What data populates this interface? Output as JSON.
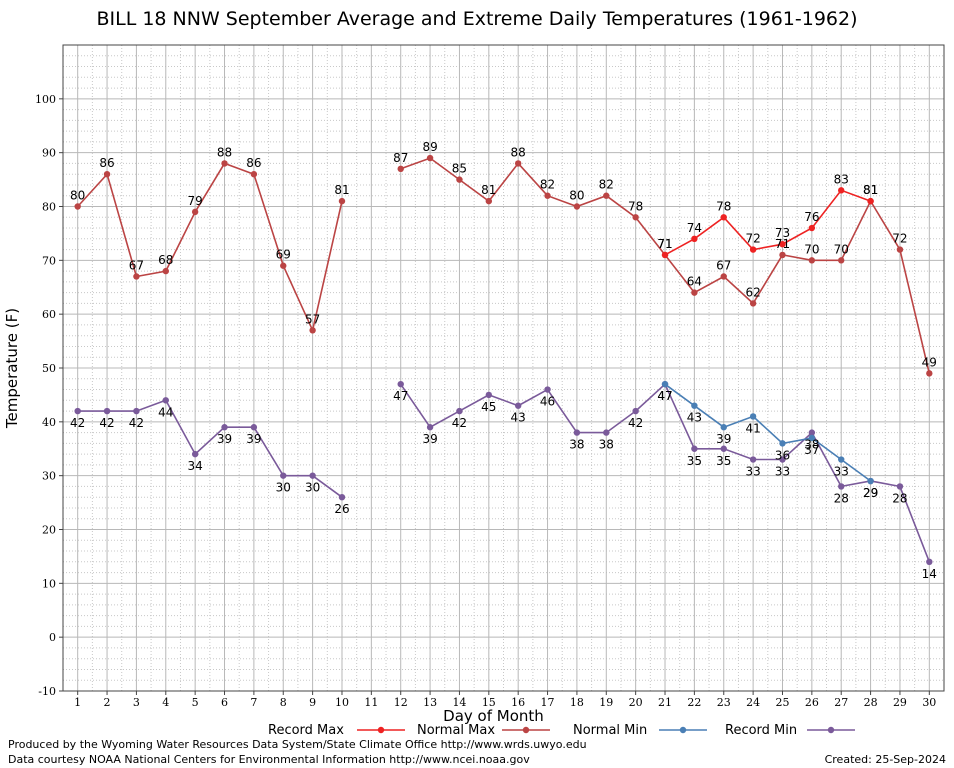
{
  "chart_data": {
    "type": "line",
    "title": "BILL 18 NNW September Average and Extreme Daily Temperatures (1961-1962)",
    "xlabel": "Day of Month",
    "ylabel": "Temperature (F)",
    "x": [
      1,
      2,
      3,
      4,
      5,
      6,
      7,
      8,
      9,
      10,
      11,
      12,
      13,
      14,
      15,
      16,
      17,
      18,
      19,
      20,
      21,
      22,
      23,
      24,
      25,
      26,
      27,
      28,
      29,
      30
    ],
    "xlim": [
      0.5,
      30.5
    ],
    "ylim": [
      -10,
      110
    ],
    "yticks": [
      -10,
      0,
      10,
      20,
      30,
      40,
      50,
      60,
      70,
      80,
      90,
      100
    ],
    "grid": true,
    "legend_position": "bottom",
    "series": [
      {
        "name": "Record Max",
        "color": "#ee2222",
        "show_labels": true,
        "values": [
          null,
          null,
          null,
          null,
          null,
          null,
          null,
          null,
          null,
          null,
          null,
          null,
          null,
          null,
          null,
          null,
          null,
          null,
          null,
          null,
          71,
          74,
          78,
          72,
          73,
          76,
          83,
          81,
          null,
          null
        ]
      },
      {
        "name": "Normal Max",
        "color": "#bb4444",
        "show_labels": true,
        "values": [
          80,
          86,
          67,
          68,
          79,
          88,
          86,
          69,
          57,
          81,
          null,
          87,
          89,
          85,
          81,
          88,
          82,
          80,
          82,
          78,
          71,
          64,
          67,
          62,
          71,
          70,
          70,
          81,
          72,
          49
        ]
      },
      {
        "name": "Normal Min",
        "color": "#4a7fb5",
        "show_labels": true,
        "values": [
          null,
          null,
          null,
          null,
          null,
          null,
          null,
          null,
          null,
          null,
          null,
          null,
          null,
          null,
          null,
          null,
          null,
          null,
          null,
          null,
          47,
          43,
          39,
          41,
          36,
          37,
          33,
          29,
          null,
          null
        ]
      },
      {
        "name": "Record Min",
        "color": "#7a5a9a",
        "show_labels": true,
        "values": [
          42,
          42,
          42,
          44,
          34,
          39,
          39,
          30,
          30,
          26,
          null,
          47,
          39,
          42,
          45,
          43,
          46,
          38,
          38,
          42,
          47,
          35,
          35,
          33,
          33,
          38,
          28,
          29,
          28,
          14
        ]
      }
    ]
  },
  "footer": {
    "line1": "Produced by the Wyoming Water Resources Data System/State Climate Office http://www.wrds.uwyo.edu",
    "line2": "Data courtesy NOAA National Centers for Environmental Information http://www.ncei.noaa.gov",
    "created": "Created:  25-Sep-2024"
  }
}
